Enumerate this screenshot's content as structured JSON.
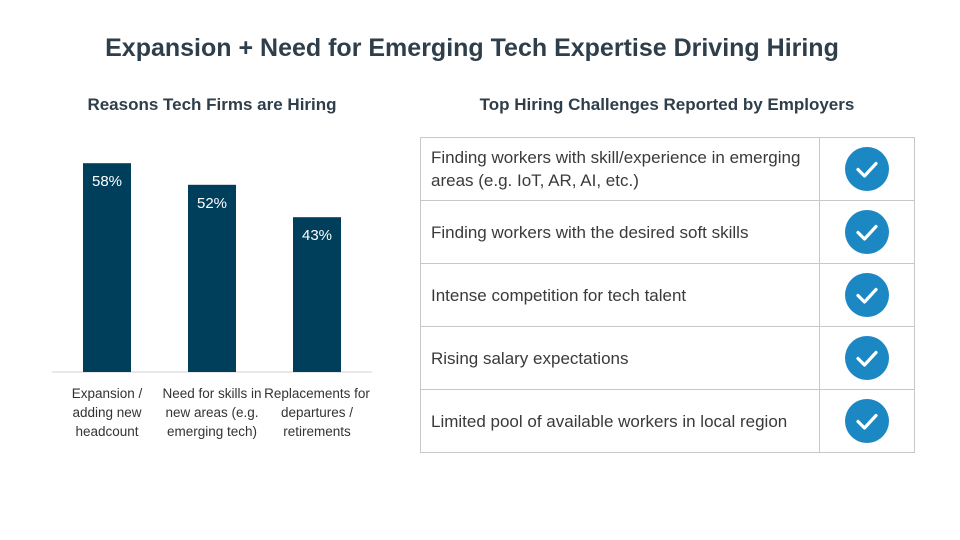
{
  "title": "Expansion + Need for Emerging Tech Expertise Driving Hiring",
  "chart_data": {
    "type": "bar",
    "title": "Reasons Tech Firms are Hiring",
    "categories": [
      "Expansion / adding new headcount",
      "Need for skills in new areas (e.g. emerging tech)",
      "Replacements for departures / retirements"
    ],
    "values": [
      58,
      52,
      43
    ],
    "value_labels": [
      "58%",
      "52%",
      "43%"
    ],
    "ylim": [
      0,
      60
    ],
    "unit": "%",
    "xlabel": "",
    "ylabel": "",
    "grid": false,
    "bar_color": "#003f5c"
  },
  "challenges": {
    "title": "Top Hiring Challenges Reported by Employers",
    "check_icon": "check-circle-icon",
    "check_color": "#1b87c3",
    "rows": [
      "Finding workers with skill/experience in emerging areas (e.g. IoT, AR, AI, etc.)",
      "Finding workers with the desired soft skills",
      "Intense competition for tech talent",
      "Rising salary expectations",
      "Limited pool of available workers in local region"
    ]
  }
}
